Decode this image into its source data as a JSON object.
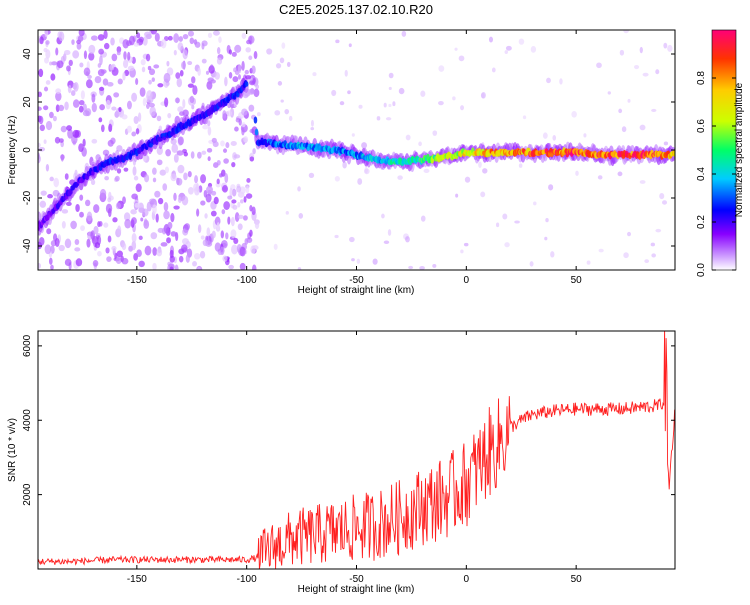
{
  "title": "C2E5.2025.137.02.10.R20",
  "chart_data": [
    {
      "type": "heatmap",
      "xlabel": "Height of straight line (km)",
      "ylabel": "Frequency (Hz)",
      "xlim": [
        -195,
        95
      ],
      "ylim": [
        -50,
        50
      ],
      "xticks": [
        -150,
        -100,
        -50,
        0,
        50
      ],
      "xtick_labels": [
        "-150",
        "-100",
        "-50",
        "0",
        "50"
      ],
      "yticks": [
        -40,
        -20,
        0,
        20,
        40
      ],
      "ytick_labels": [
        "-40",
        "-20",
        "0",
        "20",
        "40"
      ],
      "colorbar": {
        "label": "Normalized spectral amplitude",
        "range": [
          0,
          1
        ],
        "ticks": [
          0.0,
          0.2,
          0.4,
          0.6,
          0.8
        ],
        "tick_labels": [
          "0.0",
          "0.2",
          "0.4",
          "0.6",
          "0.8"
        ],
        "colors": [
          "#ffffff",
          "#cc99ff",
          "#8800ff",
          "#0000ff",
          "#00ccff",
          "#00ff66",
          "#ccff00",
          "#ffcc00",
          "#ff3300",
          "#ff0077"
        ]
      },
      "ridge": {
        "x": [
          -195,
          -185,
          -175,
          -165,
          -155,
          -145,
          -135,
          -125,
          -115,
          -105,
          -98,
          -95,
          -90,
          -80,
          -70,
          -60,
          -50,
          -40,
          -30,
          -20,
          -10,
          0,
          10,
          20,
          30,
          40,
          50,
          60,
          70,
          80,
          90,
          95
        ],
        "y": [
          -32,
          -22,
          -12,
          -6,
          -3,
          2,
          7,
          12,
          17,
          23,
          30,
          3,
          3,
          2,
          1,
          0,
          -2,
          -4,
          -5,
          -4,
          -3,
          -1,
          -1,
          -1,
          -1,
          -1,
          -1,
          -2,
          -2,
          -2,
          -2,
          -2
        ],
        "amplitude": [
          0.25,
          0.3,
          0.3,
          0.35,
          0.35,
          0.35,
          0.35,
          0.35,
          0.35,
          0.35,
          0.35,
          0.4,
          0.4,
          0.45,
          0.45,
          0.45,
          0.45,
          0.5,
          0.55,
          0.6,
          0.7,
          0.8,
          0.85,
          0.9,
          0.92,
          0.95,
          0.97,
          0.98,
          0.99,
          1.0,
          0.9,
          0.85
        ]
      },
      "grid": false
    },
    {
      "type": "line",
      "xlabel": "Height of straight line (km)",
      "ylabel": "SNR (10 * v/v)",
      "xlim": [
        -195,
        95
      ],
      "ylim": [
        0,
        6400
      ],
      "xticks": [
        -150,
        -100,
        -50,
        0,
        50
      ],
      "xtick_labels": [
        "-150",
        "-100",
        "-50",
        "0",
        "50"
      ],
      "yticks": [
        2000,
        4000,
        6000
      ],
      "ytick_labels": [
        "2000",
        "4000",
        "6000"
      ],
      "color": "#ff2020",
      "series": [
        {
          "x": [
            -195,
            -180,
            -160,
            -140,
            -120,
            -100,
            -95,
            -90,
            -80,
            -70,
            -60,
            -50,
            -40,
            -30,
            -20,
            -10,
            0,
            5,
            10,
            15,
            20,
            25,
            30,
            40,
            50,
            60,
            70,
            80,
            88,
            90,
            91,
            92,
            95
          ],
          "y": [
            200,
            200,
            250,
            250,
            250,
            250,
            300,
            500,
            800,
            900,
            1000,
            1100,
            1200,
            1400,
            1700,
            1900,
            2300,
            2700,
            3100,
            3400,
            3800,
            4000,
            4150,
            4250,
            4300,
            4300,
            4300,
            4350,
            4400,
            4500,
            5800,
            2000,
            4300
          ]
        }
      ],
      "grid": false
    }
  ]
}
